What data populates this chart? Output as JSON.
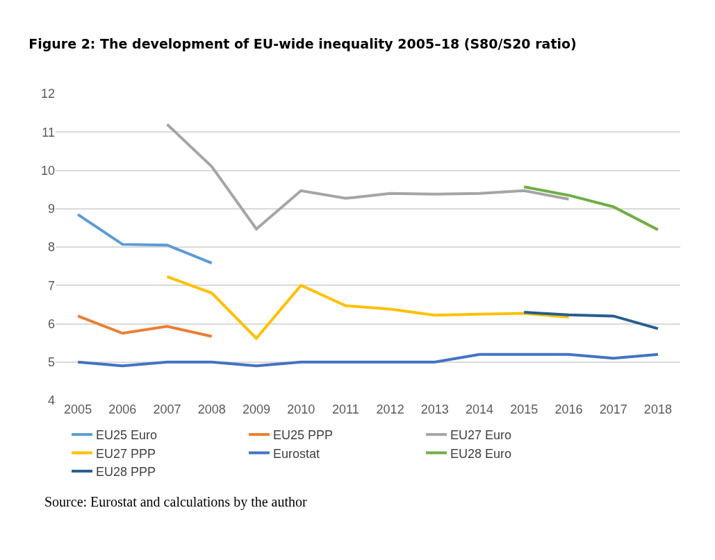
{
  "chart_data": {
    "type": "line",
    "title": "Figure 2: The development of EU-wide inequality 2005–18 (S80/S20 ratio)",
    "categories": [
      "2005",
      "2006",
      "2007",
      "2008",
      "2009",
      "2010",
      "2011",
      "2012",
      "2013",
      "2014",
      "2015",
      "2016",
      "2017",
      "2018"
    ],
    "series": [
      {
        "name": "EU25 Euro",
        "color": "#5b9bd5",
        "values": [
          8.85,
          8.07,
          8.05,
          7.58,
          null,
          null,
          null,
          null,
          null,
          null,
          null,
          null,
          null,
          null
        ]
      },
      {
        "name": "EU25 PPP",
        "color": "#ed7d31",
        "values": [
          6.2,
          5.75,
          5.93,
          5.67,
          null,
          null,
          null,
          null,
          null,
          null,
          null,
          null,
          null,
          null
        ]
      },
      {
        "name": "EU27 Euro",
        "color": "#a5a5a5",
        "values": [
          null,
          null,
          11.2,
          10.1,
          8.47,
          9.47,
          9.27,
          9.4,
          9.38,
          9.4,
          9.47,
          9.25,
          null,
          null
        ]
      },
      {
        "name": "EU27 PPP",
        "color": "#ffc000",
        "values": [
          null,
          null,
          7.23,
          6.8,
          5.62,
          7.0,
          6.47,
          6.38,
          6.22,
          6.25,
          6.27,
          6.17,
          null,
          null
        ]
      },
      {
        "name": "Eurostat",
        "color": "#4472c4",
        "values": [
          5.0,
          4.9,
          5.0,
          5.0,
          4.9,
          5.0,
          5.0,
          5.0,
          5.0,
          5.2,
          5.2,
          5.2,
          5.1,
          5.2
        ]
      },
      {
        "name": "EU28 Euro",
        "color": "#70ad47",
        "values": [
          null,
          null,
          null,
          null,
          null,
          null,
          null,
          null,
          null,
          null,
          9.57,
          9.35,
          9.05,
          8.45
        ]
      },
      {
        "name": "EU28 PPP",
        "color": "#255e91",
        "values": [
          null,
          null,
          null,
          null,
          null,
          null,
          null,
          null,
          null,
          null,
          6.3,
          6.23,
          6.2,
          5.87
        ]
      }
    ],
    "ylim": [
      4,
      12
    ],
    "yticks": [
      4,
      5,
      6,
      7,
      8,
      9,
      10,
      11,
      12
    ],
    "grid": "y",
    "legend": "bottom",
    "marker": "none",
    "line_style": "solid",
    "annotations": [
      "Source: Eurostat and calculations by the author"
    ]
  }
}
